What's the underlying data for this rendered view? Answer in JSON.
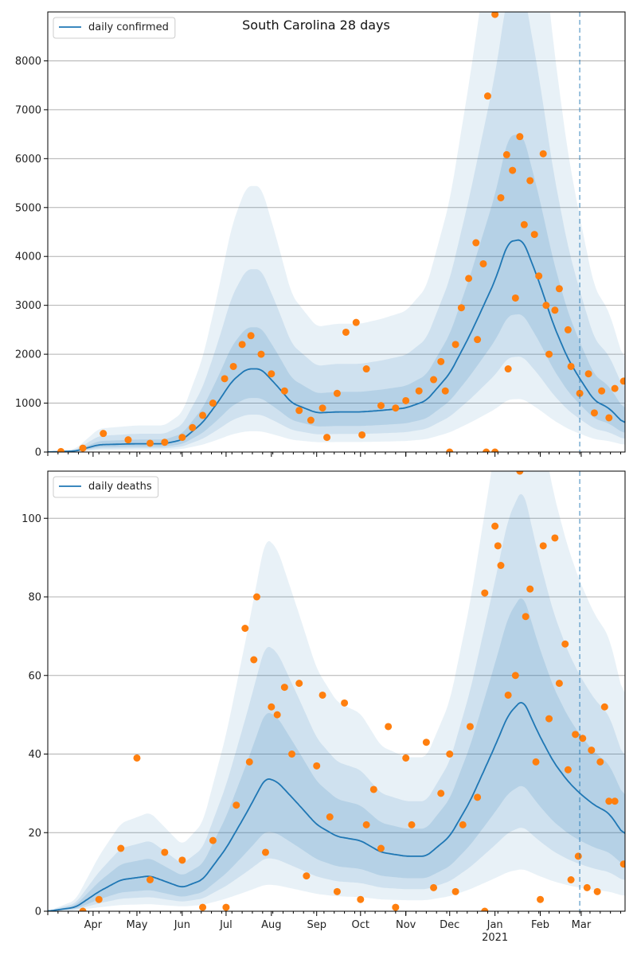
{
  "figure_title": "South Carolina 28 days",
  "colors": {
    "line": "#1f77b4",
    "points": "#ff7f0e",
    "band": "#1f77b4",
    "grid": "#b0b0b0",
    "vline": "#1f77b4"
  },
  "x_axis": {
    "range": [
      "2020-03-01",
      "2021-03-31"
    ],
    "tick_labels": [
      {
        "label": "Apr",
        "date": "2020-04-01"
      },
      {
        "label": "May",
        "date": "2020-05-01"
      },
      {
        "label": "Jun",
        "date": "2020-06-01"
      },
      {
        "label": "Jul",
        "date": "2020-07-01"
      },
      {
        "label": "Aug",
        "date": "2020-08-01"
      },
      {
        "label": "Sep",
        "date": "2020-09-01"
      },
      {
        "label": "Oct",
        "date": "2020-10-01"
      },
      {
        "label": "Nov",
        "date": "2020-11-01"
      },
      {
        "label": "Dec",
        "date": "2020-12-01"
      },
      {
        "label": "Jan",
        "date": "2021-01-01"
      },
      {
        "label": "Feb",
        "date": "2021-02-01"
      },
      {
        "label": "Mar",
        "date": "2021-03-01"
      }
    ],
    "year_label": "2021",
    "forecast_start": "2021-02-28"
  },
  "chart_data": [
    {
      "type": "line",
      "legend": "daily confirmed",
      "legend_position": "top-left",
      "ylim": [
        0,
        9000
      ],
      "yticks": [
        0,
        1000,
        2000,
        3000,
        4000,
        5000,
        6000,
        7000,
        8000
      ],
      "grid": "horizontal",
      "line": [
        {
          "date": "2020-03-01",
          "value": 0
        },
        {
          "date": "2020-03-20",
          "value": 20
        },
        {
          "date": "2020-04-05",
          "value": 150
        },
        {
          "date": "2020-05-01",
          "value": 170
        },
        {
          "date": "2020-05-20",
          "value": 170
        },
        {
          "date": "2020-06-01",
          "value": 250
        },
        {
          "date": "2020-06-15",
          "value": 600
        },
        {
          "date": "2020-06-25",
          "value": 1000
        },
        {
          "date": "2020-07-05",
          "value": 1450
        },
        {
          "date": "2020-07-15",
          "value": 1700
        },
        {
          "date": "2020-07-25",
          "value": 1700
        },
        {
          "date": "2020-08-05",
          "value": 1350
        },
        {
          "date": "2020-08-15",
          "value": 1000
        },
        {
          "date": "2020-09-01",
          "value": 800
        },
        {
          "date": "2020-09-15",
          "value": 820
        },
        {
          "date": "2020-10-01",
          "value": 820
        },
        {
          "date": "2020-10-15",
          "value": 850
        },
        {
          "date": "2020-11-01",
          "value": 900
        },
        {
          "date": "2020-11-15",
          "value": 1050
        },
        {
          "date": "2020-12-01",
          "value": 1600
        },
        {
          "date": "2020-12-15",
          "value": 2400
        },
        {
          "date": "2021-01-01",
          "value": 3500
        },
        {
          "date": "2021-01-10",
          "value": 4300
        },
        {
          "date": "2021-01-20",
          "value": 4350
        },
        {
          "date": "2021-01-31",
          "value": 3500
        },
        {
          "date": "2021-02-10",
          "value": 2600
        },
        {
          "date": "2021-02-20",
          "value": 1900
        },
        {
          "date": "2021-02-28",
          "value": 1500
        },
        {
          "date": "2021-03-10",
          "value": 1050
        },
        {
          "date": "2021-03-20",
          "value": 900
        },
        {
          "date": "2021-03-31",
          "value": 560
        }
      ],
      "bands": [
        {
          "lower_ratio": 0.65,
          "upper_ratio": 1.5,
          "opacity": 0.15
        },
        {
          "lower_ratio": 0.45,
          "upper_ratio": 2.2,
          "opacity": 0.12
        },
        {
          "lower_ratio": 0.25,
          "upper_ratio": 3.2,
          "opacity": 0.1
        }
      ],
      "points": [
        {
          "date": "2021-01-01",
          "value": 8950
        },
        {
          "date": "2020-12-27",
          "value": 7280
        },
        {
          "date": "2021-01-09",
          "value": 6080
        },
        {
          "date": "2021-01-18",
          "value": 6450
        },
        {
          "date": "2021-02-03",
          "value": 6100
        },
        {
          "date": "2021-01-13",
          "value": 5760
        },
        {
          "date": "2021-01-05",
          "value": 5200
        },
        {
          "date": "2021-01-21",
          "value": 4650
        },
        {
          "date": "2021-01-28",
          "value": 4450
        },
        {
          "date": "2020-12-19",
          "value": 4280
        },
        {
          "date": "2020-12-24",
          "value": 3850
        },
        {
          "date": "2020-12-14",
          "value": 3550
        },
        {
          "date": "2021-02-14",
          "value": 3340
        },
        {
          "date": "2021-02-05",
          "value": 3000
        },
        {
          "date": "2021-01-31",
          "value": 3600
        },
        {
          "date": "2021-02-11",
          "value": 2900
        },
        {
          "date": "2020-12-09",
          "value": 2950
        },
        {
          "date": "2021-02-20",
          "value": 2500
        },
        {
          "date": "2020-12-05",
          "value": 2200
        },
        {
          "date": "2021-02-22",
          "value": 1750
        },
        {
          "date": "2021-02-28",
          "value": 1200
        },
        {
          "date": "2021-03-06",
          "value": 1600
        },
        {
          "date": "2021-03-15",
          "value": 1250
        },
        {
          "date": "2021-03-24",
          "value": 1300
        },
        {
          "date": "2021-03-30",
          "value": 1450
        },
        {
          "date": "2021-03-10",
          "value": 800
        },
        {
          "date": "2021-03-20",
          "value": 700
        },
        {
          "date": "2020-11-25",
          "value": 1850
        },
        {
          "date": "2020-11-20",
          "value": 1480
        },
        {
          "date": "2020-11-10",
          "value": 1250
        },
        {
          "date": "2020-11-01",
          "value": 1050
        },
        {
          "date": "2020-10-25",
          "value": 900
        },
        {
          "date": "2020-10-15",
          "value": 950
        },
        {
          "date": "2020-10-05",
          "value": 1700
        },
        {
          "date": "2020-09-21",
          "value": 2450
        },
        {
          "date": "2020-09-28",
          "value": 2650
        },
        {
          "date": "2020-09-15",
          "value": 1200
        },
        {
          "date": "2020-09-05",
          "value": 900
        },
        {
          "date": "2020-08-28",
          "value": 650
        },
        {
          "date": "2020-08-20",
          "value": 850
        },
        {
          "date": "2020-08-10",
          "value": 1250
        },
        {
          "date": "2020-08-01",
          "value": 1600
        },
        {
          "date": "2020-07-25",
          "value": 2000
        },
        {
          "date": "2020-07-18",
          "value": 2380
        },
        {
          "date": "2020-07-12",
          "value": 2200
        },
        {
          "date": "2020-07-06",
          "value": 1750
        },
        {
          "date": "2020-06-30",
          "value": 1500
        },
        {
          "date": "2020-06-22",
          "value": 1000
        },
        {
          "date": "2020-06-15",
          "value": 750
        },
        {
          "date": "2020-06-08",
          "value": 500
        },
        {
          "date": "2020-06-01",
          "value": 300
        },
        {
          "date": "2020-05-20",
          "value": 200
        },
        {
          "date": "2020-05-10",
          "value": 180
        },
        {
          "date": "2020-04-25",
          "value": 250
        },
        {
          "date": "2020-04-08",
          "value": 380
        },
        {
          "date": "2020-03-25",
          "value": 80
        },
        {
          "date": "2020-03-10",
          "value": 10
        },
        {
          "date": "2020-12-01",
          "value": 0
        },
        {
          "date": "2020-12-26",
          "value": 0
        },
        {
          "date": "2021-01-01",
          "value": 0
        },
        {
          "date": "2020-10-02",
          "value": 350
        },
        {
          "date": "2020-09-08",
          "value": 300
        },
        {
          "date": "2020-11-28",
          "value": 1250
        },
        {
          "date": "2020-12-20",
          "value": 2300
        },
        {
          "date": "2021-01-15",
          "value": 3150
        },
        {
          "date": "2021-01-25",
          "value": 5550
        },
        {
          "date": "2021-01-10",
          "value": 1700
        },
        {
          "date": "2021-02-07",
          "value": 2000
        }
      ]
    },
    {
      "type": "line",
      "legend": "daily deaths",
      "legend_position": "top-left",
      "ylim": [
        0,
        112
      ],
      "yticks": [
        0,
        20,
        40,
        60,
        80,
        100
      ],
      "grid": "horizontal",
      "line": [
        {
          "date": "2020-03-01",
          "value": 0
        },
        {
          "date": "2020-03-20",
          "value": 1
        },
        {
          "date": "2020-04-05",
          "value": 5
        },
        {
          "date": "2020-04-20",
          "value": 8
        },
        {
          "date": "2020-05-10",
          "value": 9
        },
        {
          "date": "2020-06-01",
          "value": 6
        },
        {
          "date": "2020-06-15",
          "value": 8
        },
        {
          "date": "2020-07-01",
          "value": 16
        },
        {
          "date": "2020-07-15",
          "value": 25
        },
        {
          "date": "2020-07-28",
          "value": 34
        },
        {
          "date": "2020-08-05",
          "value": 33
        },
        {
          "date": "2020-08-20",
          "value": 27
        },
        {
          "date": "2020-09-01",
          "value": 22
        },
        {
          "date": "2020-09-15",
          "value": 19
        },
        {
          "date": "2020-10-01",
          "value": 18
        },
        {
          "date": "2020-10-15",
          "value": 15
        },
        {
          "date": "2020-11-01",
          "value": 14
        },
        {
          "date": "2020-11-15",
          "value": 14
        },
        {
          "date": "2020-12-01",
          "value": 19
        },
        {
          "date": "2020-12-15",
          "value": 28
        },
        {
          "date": "2021-01-01",
          "value": 42
        },
        {
          "date": "2021-01-10",
          "value": 50
        },
        {
          "date": "2021-01-20",
          "value": 54
        },
        {
          "date": "2021-01-31",
          "value": 45
        },
        {
          "date": "2021-02-10",
          "value": 38
        },
        {
          "date": "2021-02-20",
          "value": 33
        },
        {
          "date": "2021-02-28",
          "value": 30
        },
        {
          "date": "2021-03-10",
          "value": 27
        },
        {
          "date": "2021-03-20",
          "value": 25
        },
        {
          "date": "2021-03-31",
          "value": 19
        }
      ],
      "bands": [
        {
          "lower_ratio": 0.6,
          "upper_ratio": 1.5,
          "opacity": 0.15
        },
        {
          "lower_ratio": 0.4,
          "upper_ratio": 2.0,
          "opacity": 0.12
        },
        {
          "lower_ratio": 0.2,
          "upper_ratio": 2.8,
          "opacity": 0.1
        }
      ],
      "points": [
        {
          "date": "2020-05-01",
          "value": 39
        },
        {
          "date": "2020-07-22",
          "value": 80
        },
        {
          "date": "2020-07-14",
          "value": 72
        },
        {
          "date": "2020-07-20",
          "value": 64
        },
        {
          "date": "2020-08-01",
          "value": 52
        },
        {
          "date": "2020-08-10",
          "value": 57
        },
        {
          "date": "2020-08-20",
          "value": 58
        },
        {
          "date": "2020-09-05",
          "value": 55
        },
        {
          "date": "2020-09-20",
          "value": 53
        },
        {
          "date": "2020-10-10",
          "value": 31
        },
        {
          "date": "2020-10-20",
          "value": 47
        },
        {
          "date": "2020-11-01",
          "value": 39
        },
        {
          "date": "2020-11-15",
          "value": 43
        },
        {
          "date": "2020-12-01",
          "value": 40
        },
        {
          "date": "2020-12-15",
          "value": 47
        },
        {
          "date": "2020-12-25",
          "value": 81
        },
        {
          "date": "2021-01-01",
          "value": 98
        },
        {
          "date": "2021-01-03",
          "value": 93
        },
        {
          "date": "2021-01-05",
          "value": 88
        },
        {
          "date": "2021-01-18",
          "value": 112
        },
        {
          "date": "2021-01-25",
          "value": 82
        },
        {
          "date": "2021-02-03",
          "value": 93
        },
        {
          "date": "2021-02-11",
          "value": 95
        },
        {
          "date": "2021-02-18",
          "value": 68
        },
        {
          "date": "2021-02-25",
          "value": 45
        },
        {
          "date": "2021-03-02",
          "value": 44
        },
        {
          "date": "2021-03-08",
          "value": 41
        },
        {
          "date": "2021-03-17",
          "value": 52
        },
        {
          "date": "2021-03-24",
          "value": 28
        },
        {
          "date": "2021-03-30",
          "value": 12
        },
        {
          "date": "2021-03-05",
          "value": 6
        },
        {
          "date": "2021-03-12",
          "value": 5
        },
        {
          "date": "2021-02-22",
          "value": 8
        },
        {
          "date": "2021-02-01",
          "value": 3
        },
        {
          "date": "2020-12-25",
          "value": 0
        },
        {
          "date": "2020-12-05",
          "value": 5
        },
        {
          "date": "2020-11-20",
          "value": 6
        },
        {
          "date": "2020-10-25",
          "value": 1
        },
        {
          "date": "2020-10-01",
          "value": 3
        },
        {
          "date": "2020-09-15",
          "value": 5
        },
        {
          "date": "2020-08-25",
          "value": 9
        },
        {
          "date": "2020-07-28",
          "value": 15
        },
        {
          "date": "2020-07-01",
          "value": 1
        },
        {
          "date": "2020-06-15",
          "value": 1
        },
        {
          "date": "2020-06-01",
          "value": 13
        },
        {
          "date": "2020-05-20",
          "value": 15
        },
        {
          "date": "2020-05-10",
          "value": 8
        },
        {
          "date": "2020-04-20",
          "value": 16
        },
        {
          "date": "2020-04-05",
          "value": 3
        },
        {
          "date": "2020-03-25",
          "value": 0
        },
        {
          "date": "2020-06-22",
          "value": 18
        },
        {
          "date": "2020-07-08",
          "value": 27
        },
        {
          "date": "2020-07-17",
          "value": 38
        },
        {
          "date": "2020-08-05",
          "value": 50
        },
        {
          "date": "2020-08-15",
          "value": 40
        },
        {
          "date": "2020-09-01",
          "value": 37
        },
        {
          "date": "2020-09-10",
          "value": 24
        },
        {
          "date": "2020-10-05",
          "value": 22
        },
        {
          "date": "2020-10-15",
          "value": 16
        },
        {
          "date": "2020-11-05",
          "value": 22
        },
        {
          "date": "2020-11-25",
          "value": 30
        },
        {
          "date": "2020-12-10",
          "value": 22
        },
        {
          "date": "2020-12-20",
          "value": 29
        },
        {
          "date": "2021-01-10",
          "value": 55
        },
        {
          "date": "2021-01-15",
          "value": 60
        },
        {
          "date": "2021-01-22",
          "value": 75
        },
        {
          "date": "2021-01-29",
          "value": 38
        },
        {
          "date": "2021-02-07",
          "value": 49
        },
        {
          "date": "2021-02-14",
          "value": 58
        },
        {
          "date": "2021-02-20",
          "value": 36
        },
        {
          "date": "2021-02-27",
          "value": 14
        },
        {
          "date": "2021-03-14",
          "value": 38
        },
        {
          "date": "2021-03-20",
          "value": 28
        }
      ]
    }
  ]
}
